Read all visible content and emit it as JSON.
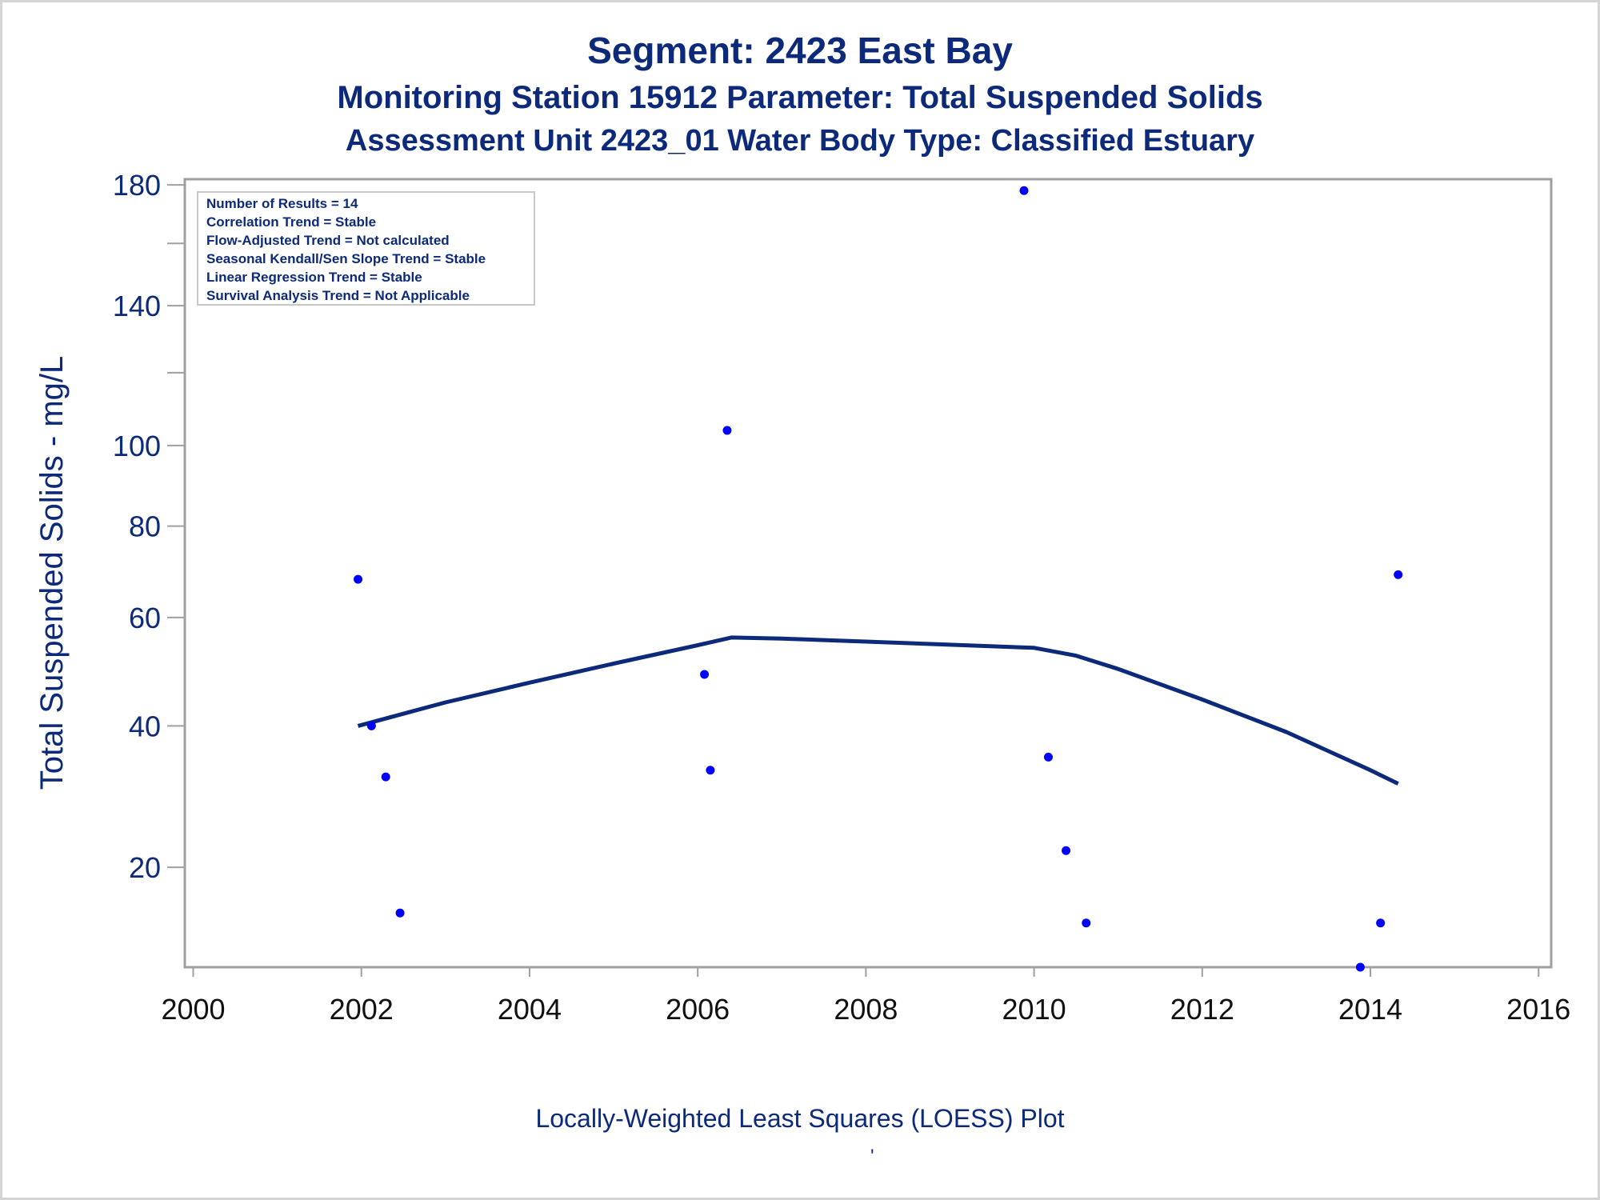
{
  "titles": {
    "line1": "Segment: 2423  East Bay",
    "line2": "Monitoring Station 15912 Parameter: Total Suspended Solids",
    "line3": "Assessment Unit 2423_01   Water Body Type: Classified Estuary"
  },
  "footnote": "Locally-Weighted Least Squares (LOESS) Plot",
  "footnote_mark": "'",
  "colors": {
    "title": "#0d2a7a",
    "points": "#0000ff",
    "loess": "#0d2a7a",
    "frame": "#a0a0a0"
  },
  "chart_data": {
    "type": "scatter",
    "title": "",
    "xlabel": "",
    "ylabel": "Total Suspended Solids - mg/L",
    "x_ticks": [
      2000,
      2002,
      2004,
      2006,
      2008,
      2010,
      2012,
      2014,
      2016
    ],
    "y_ticks": [
      20,
      40,
      60,
      80,
      100,
      140,
      180
    ],
    "y_minor_ticks": [
      120,
      160
    ],
    "xlim": [
      1999.9,
      2016.15
    ],
    "ylim": [
      10.0,
      182
    ],
    "y_scale": "square-root",
    "grid": false,
    "legend": {
      "placement": "top-left",
      "lines": [
        "Number of Results = 14",
        "Correlation Trend = Stable",
        "Flow-Adjusted Trend = Not calculated",
        "Seasonal Kendall/Sen Slope Trend = Stable",
        "Linear Regression Trend = Stable",
        "Survival Analysis Trend = Not Applicable"
      ]
    },
    "series": [
      {
        "type": "scatter",
        "x": [
          2001.96,
          2002.12,
          2002.29,
          2002.46,
          2006.08,
          2006.15,
          2006.35,
          2009.88,
          2010.17,
          2010.38,
          2010.62,
          2013.88,
          2014.12,
          2014.33
        ],
        "y": [
          68,
          40,
          32,
          15,
          49,
          33,
          104,
          178,
          35,
          22,
          14,
          10,
          14,
          69
        ]
      },
      {
        "type": "line",
        "x": [
          2001.96,
          2003.0,
          2004.0,
          2005.0,
          2006.0,
          2006.4,
          2007.0,
          2008.0,
          2009.0,
          2010.0,
          2010.5,
          2011.0,
          2012.0,
          2013.0,
          2014.0,
          2014.33
        ],
        "y": [
          40,
          44,
          47.5,
          51,
          54.5,
          56,
          55.8,
          55.2,
          54.6,
          54,
          52.5,
          50,
          44.5,
          39,
          33,
          31
        ]
      }
    ]
  }
}
